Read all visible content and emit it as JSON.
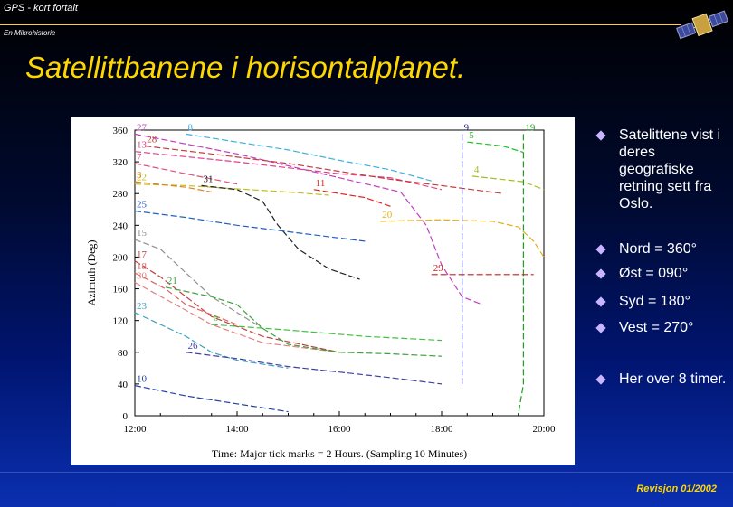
{
  "header": {
    "title": "GPS - kort fortalt",
    "subtitle": "En Mikrohistorie"
  },
  "slide_title": "Satellittbanene i horisontalplanet.",
  "bullets": [
    "Satelittene vist i deres geografiske retning sett fra Oslo.",
    "Nord = 360°",
    "Øst  = 090°",
    "Syd  = 180°",
    "Vest = 270°",
    "Her over 8 timer."
  ],
  "footer": "Revisjon 01/2002",
  "icons": {
    "logo": "satellite-icon",
    "bullet": "diamond-bullet-icon"
  },
  "colors": {
    "accent": "#ffd700",
    "bullet": "#c8b4ff"
  },
  "chart_data": {
    "type": "line",
    "title": "",
    "xlabel": "Time: Major tick marks = 2 Hours. (Sampling 10 Minutes)",
    "ylabel": "Azimuth (Deg)",
    "xlim": [
      12,
      20
    ],
    "ylim": [
      0,
      360
    ],
    "x_ticks": [
      {
        "value": 12,
        "label": "12:00"
      },
      {
        "value": 14,
        "label": "14:00"
      },
      {
        "value": 16,
        "label": "16:00"
      },
      {
        "value": 18,
        "label": "18:00"
      },
      {
        "value": 20,
        "label": "20:00"
      }
    ],
    "y_ticks": [
      0,
      40,
      80,
      120,
      160,
      200,
      240,
      280,
      320,
      360
    ],
    "series": [
      {
        "name": "27",
        "color": "#c040c0",
        "x": [
          12.0,
          14.0,
          16.0,
          17.2,
          17.7,
          18.0,
          18.4,
          18.8
        ],
        "y": [
          355,
          330,
          300,
          282,
          240,
          190,
          150,
          140
        ]
      },
      {
        "name": "13",
        "color": "#e0408a",
        "x": [
          12.0,
          14.0,
          16.0,
          17.0,
          18.0
        ],
        "y": [
          333,
          320,
          305,
          300,
          285
        ]
      },
      {
        "name": "7",
        "color": "#e0507a",
        "x": [
          12.0,
          13.0,
          14.0
        ],
        "y": [
          318,
          305,
          292
        ]
      },
      {
        "name": "8",
        "color": "#40b0e0",
        "x": [
          13.0,
          14.0,
          15.0,
          16.0,
          17.0,
          17.8
        ],
        "y": [
          355,
          345,
          335,
          322,
          310,
          296
        ]
      },
      {
        "name": "28",
        "color": "#c04040",
        "x": [
          12.2,
          13.5,
          15.0,
          16.0,
          17.0,
          18.0,
          19.2
        ],
        "y": [
          340,
          330,
          318,
          308,
          298,
          290,
          280
        ]
      },
      {
        "name": "22",
        "color": "#c0c020",
        "x": [
          12.0,
          13.0,
          14.0,
          15.0,
          15.8
        ],
        "y": [
          292,
          290,
          286,
          282,
          278
        ]
      },
      {
        "name": "3",
        "color": "#e08020",
        "x": [
          12.0,
          13.0,
          13.5
        ],
        "y": [
          295,
          288,
          282
        ]
      },
      {
        "name": "31",
        "color": "#202020",
        "x": [
          13.3,
          14.0,
          14.5,
          14.8,
          15.2,
          15.8,
          16.4
        ],
        "y": [
          290,
          285,
          270,
          240,
          210,
          185,
          172
        ]
      },
      {
        "name": "11",
        "color": "#e02020",
        "x": [
          15.5,
          16.5,
          17.0
        ],
        "y": [
          285,
          275,
          264
        ]
      },
      {
        "name": "5",
        "color": "#20c020",
        "x": [
          18.5,
          19.2,
          19.6
        ],
        "y": [
          345,
          340,
          332
        ]
      },
      {
        "name": "4",
        "color": "#a0c020",
        "x": [
          18.6,
          19.6,
          20.0
        ],
        "y": [
          302,
          295,
          285
        ]
      },
      {
        "name": "20",
        "color": "#e0b020",
        "x": [
          16.8,
          18.0,
          19.0,
          19.5,
          19.8,
          20.0
        ],
        "y": [
          245,
          247,
          245,
          238,
          220,
          200
        ]
      },
      {
        "name": "25",
        "color": "#2060c0",
        "x": [
          12.0,
          13.0,
          14.0,
          15.0,
          16.5
        ],
        "y": [
          258,
          250,
          240,
          232,
          220
        ]
      },
      {
        "name": "15",
        "color": "#909090",
        "x": [
          12.0,
          12.5,
          13.0,
          13.5,
          14.5
        ],
        "y": [
          222,
          210,
          180,
          150,
          110
        ]
      },
      {
        "name": "17",
        "color": "#c04040",
        "x": [
          12.0,
          12.5,
          13.0,
          13.5,
          14.5,
          16.0
        ],
        "y": [
          195,
          175,
          150,
          125,
          100,
          80
        ]
      },
      {
        "name": "18",
        "color": "#e06060",
        "x": [
          12.0,
          12.6,
          13.0,
          14.0
        ],
        "y": [
          180,
          160,
          140,
          115
        ]
      },
      {
        "name": "30",
        "color": "#e08080",
        "x": [
          12.0,
          12.8,
          13.5,
          14.5,
          16.0
        ],
        "y": [
          168,
          140,
          115,
          92,
          80
        ]
      },
      {
        "name": "21",
        "color": "#40a040",
        "x": [
          12.6,
          13.5,
          14.0,
          14.5,
          15.0,
          16.0,
          17.0,
          18.0
        ],
        "y": [
          162,
          150,
          140,
          110,
          90,
          80,
          78,
          75
        ]
      },
      {
        "name": "23",
        "color": "#40a0c0",
        "x": [
          12.0,
          13.0,
          13.5,
          14.0,
          15.0
        ],
        "y": [
          130,
          100,
          80,
          70,
          60
        ]
      },
      {
        "name": "6",
        "color": "#40c040",
        "x": [
          13.5,
          15.0,
          16.5,
          18.0
        ],
        "y": [
          115,
          108,
          100,
          95
        ]
      },
      {
        "name": "26",
        "color": "#4040a0",
        "x": [
          13.0,
          14.0,
          15.0,
          16.0,
          17.0,
          18.0
        ],
        "y": [
          80,
          72,
          62,
          55,
          48,
          40
        ]
      },
      {
        "name": "10",
        "color": "#2040a0",
        "x": [
          12.0,
          13.0,
          14.0,
          15.0
        ],
        "y": [
          38,
          25,
          15,
          5
        ]
      },
      {
        "name": "9",
        "color": "#202080",
        "x": [
          18.4,
          18.4
        ],
        "y": [
          355,
          40
        ]
      },
      {
        "name": "19",
        "color": "#20a020",
        "x": [
          19.6,
          19.6,
          19.5
        ],
        "y": [
          355,
          40,
          2
        ]
      },
      {
        "name": "29",
        "color": "#c02020",
        "x": [
          17.8,
          19.8
        ],
        "y": [
          178,
          178
        ]
      }
    ]
  }
}
